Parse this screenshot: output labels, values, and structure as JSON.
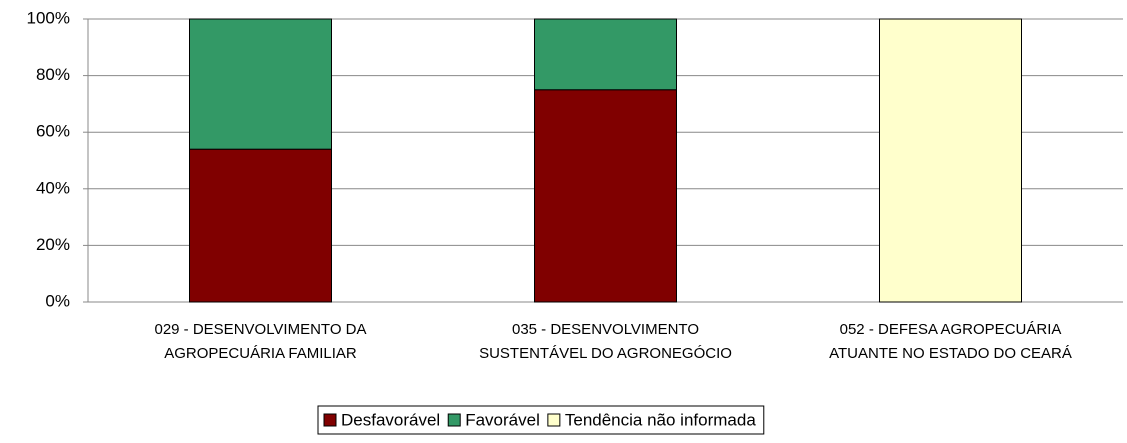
{
  "chart_data": {
    "type": "stacked_bar",
    "categories": [
      "029 - DESENVOLVIMENTO DA AGROPECUÁRIA FAMILIAR",
      "035 - DESENVOLVIMENTO SUSTENTÁVEL DO AGRONEGÓCIO",
      "052 - DEFESA AGROPECUÁRIA ATUANTE NO ESTADO DO CEARÁ"
    ],
    "series": [
      {
        "name": "Desfavorável",
        "color": "#800000",
        "values": [
          54,
          75,
          0
        ]
      },
      {
        "name": "Favorável",
        "color": "#339966",
        "values": [
          46,
          25,
          0
        ]
      },
      {
        "name": "Tendência não informada",
        "color": "#ffffcc",
        "values": [
          0,
          0,
          100
        ]
      }
    ],
    "ylim": [
      0,
      100
    ],
    "yticks": [
      {
        "value": 0,
        "label": "0%"
      },
      {
        "value": 20,
        "label": "20%"
      },
      {
        "value": 40,
        "label": "40%"
      },
      {
        "value": 60,
        "label": "60%"
      },
      {
        "value": 80,
        "label": "80%"
      },
      {
        "value": 100,
        "label": "100%"
      }
    ],
    "grid": true,
    "legend": "bottom"
  }
}
